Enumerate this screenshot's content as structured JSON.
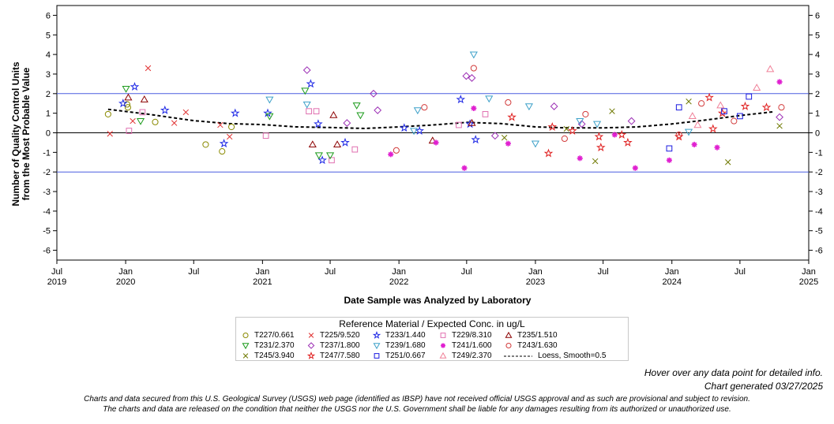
{
  "chart_data": {
    "type": "scatter",
    "ylabel_line1": "Number of Quality Control Units",
    "ylabel_line2": "from the Most Probable Value",
    "xlabel": "Date Sample was Analyzed by Laboratory",
    "ylim": [
      -6.5,
      6.5
    ],
    "y_ticks": [
      -6,
      -5,
      -4,
      -3,
      -2,
      -1,
      0,
      1,
      2,
      3,
      4,
      5,
      6
    ],
    "x_axis": {
      "start": "2019-07-01",
      "end": "2025-01-01",
      "ticks": [
        {
          "date": "2019-07-01",
          "label": "Jul",
          "year": "2019"
        },
        {
          "date": "2020-01-01",
          "label": "Jan",
          "year": "2020"
        },
        {
          "date": "2020-07-01",
          "label": "Jul",
          "year": ""
        },
        {
          "date": "2021-01-01",
          "label": "Jan",
          "year": "2021"
        },
        {
          "date": "2021-07-01",
          "label": "Jul",
          "year": ""
        },
        {
          "date": "2022-01-01",
          "label": "Jan",
          "year": "2022"
        },
        {
          "date": "2022-07-01",
          "label": "Jul",
          "year": ""
        },
        {
          "date": "2023-01-01",
          "label": "Jan",
          "year": "2023"
        },
        {
          "date": "2023-07-01",
          "label": "Jul",
          "year": ""
        },
        {
          "date": "2024-01-01",
          "label": "Jan",
          "year": "2024"
        },
        {
          "date": "2024-07-01",
          "label": "Jul",
          "year": ""
        },
        {
          "date": "2025-01-01",
          "label": "Jan",
          "year": "2025"
        }
      ]
    },
    "reference_lines": [
      {
        "y": 2,
        "color": "#4a5ee0"
      },
      {
        "y": -2,
        "color": "#4a5ee0"
      },
      {
        "y": 0,
        "color": "#000000"
      }
    ],
    "legend_title": "Reference Material / Expected Conc. in ug/L",
    "series": [
      {
        "name": "T227/0.661",
        "marker": "circle",
        "color": "#8a8a00",
        "points": [
          [
            "2019-11-15",
            0.95
          ],
          [
            "2020-01-05",
            1.45
          ],
          [
            "2020-01-07",
            1.3
          ],
          [
            "2020-03-20",
            0.55
          ],
          [
            "2020-08-02",
            -0.6
          ],
          [
            "2020-09-15",
            -0.95
          ],
          [
            "2020-10-10",
            0.3
          ]
        ]
      },
      {
        "name": "T225/9.520",
        "marker": "x",
        "color": "#e03030",
        "points": [
          [
            "2019-11-20",
            -0.05
          ],
          [
            "2020-01-20",
            0.6
          ],
          [
            "2020-03-01",
            3.3
          ],
          [
            "2020-05-10",
            0.5
          ],
          [
            "2020-06-10",
            1.05
          ],
          [
            "2020-09-10",
            0.4
          ],
          [
            "2020-10-05",
            -0.2
          ]
        ]
      },
      {
        "name": "T233/1.440",
        "marker": "star",
        "color": "#1e28e6",
        "points": [
          [
            "2019-12-25",
            1.5
          ],
          [
            "2020-01-25",
            2.35
          ],
          [
            "2020-04-15",
            1.15
          ],
          [
            "2020-09-20",
            -0.55
          ],
          [
            "2020-10-20",
            1.0
          ],
          [
            "2021-01-15",
            1.0
          ],
          [
            "2021-05-10",
            2.5
          ],
          [
            "2021-05-30",
            0.45
          ],
          [
            "2021-06-10",
            -1.4
          ],
          [
            "2021-08-10",
            -0.5
          ],
          [
            "2022-01-15",
            0.25
          ],
          [
            "2022-02-25",
            0.1
          ],
          [
            "2022-06-15",
            1.7
          ],
          [
            "2022-07-10",
            0.45
          ],
          [
            "2022-07-25",
            -0.35
          ]
        ]
      },
      {
        "name": "T229/8.310",
        "marker": "square",
        "color": "#e070b0",
        "points": [
          [
            "2020-01-10",
            0.1
          ],
          [
            "2020-02-15",
            1.05
          ],
          [
            "2021-01-10",
            -0.15
          ],
          [
            "2021-05-05",
            1.1
          ],
          [
            "2021-05-25",
            1.1
          ],
          [
            "2021-07-05",
            -1.4
          ],
          [
            "2021-09-05",
            -0.85
          ],
          [
            "2022-06-10",
            0.4
          ],
          [
            "2022-08-20",
            0.95
          ]
        ]
      },
      {
        "name": "T235/1.510",
        "marker": "triangle",
        "color": "#8b0000",
        "points": [
          [
            "2020-01-08",
            1.8
          ],
          [
            "2020-02-20",
            1.7
          ],
          [
            "2021-05-15",
            -0.6
          ],
          [
            "2021-07-10",
            0.9
          ],
          [
            "2021-07-20",
            -0.6
          ],
          [
            "2022-04-01",
            -0.4
          ],
          [
            "2022-07-15",
            0.5
          ]
        ]
      },
      {
        "name": "T231/2.370",
        "marker": "triangle-down",
        "color": "#1a9a1a",
        "points": [
          [
            "2020-01-02",
            2.25
          ],
          [
            "2020-02-10",
            0.6
          ],
          [
            "2021-01-20",
            0.85
          ],
          [
            "2021-04-25",
            2.15
          ],
          [
            "2021-06-01",
            -1.15
          ],
          [
            "2021-07-01",
            -1.15
          ],
          [
            "2021-09-10",
            1.4
          ],
          [
            "2021-09-20",
            0.9
          ]
        ]
      },
      {
        "name": "T237/1.800",
        "marker": "diamond",
        "color": "#9b2db4",
        "points": [
          [
            "2021-04-30",
            3.2
          ],
          [
            "2021-08-15",
            0.5
          ],
          [
            "2021-10-25",
            2.0
          ],
          [
            "2021-11-05",
            1.15
          ],
          [
            "2022-06-30",
            2.9
          ],
          [
            "2022-07-15",
            2.8
          ],
          [
            "2022-09-15",
            -0.15
          ],
          [
            "2023-02-20",
            1.35
          ],
          [
            "2023-05-05",
            0.45
          ],
          [
            "2023-09-15",
            0.6
          ],
          [
            "2024-10-15",
            0.8
          ]
        ]
      },
      {
        "name": "T239/1.680",
        "marker": "triangle-down",
        "color": "#3ca0c8",
        "points": [
          [
            "2021-01-20",
            1.7
          ],
          [
            "2021-04-30",
            1.45
          ],
          [
            "2022-02-10",
            0.1
          ],
          [
            "2022-02-20",
            1.15
          ],
          [
            "2022-07-20",
            4.0
          ],
          [
            "2022-08-30",
            1.75
          ],
          [
            "2022-12-15",
            1.35
          ],
          [
            "2023-01-01",
            -0.55
          ],
          [
            "2023-04-30",
            0.6
          ],
          [
            "2023-06-15",
            0.45
          ],
          [
            "2024-02-15",
            0.05
          ]
        ]
      },
      {
        "name": "T241/1.600",
        "marker": "asterisk",
        "color": "#e020d0",
        "points": [
          [
            "2021-12-10",
            -1.1
          ],
          [
            "2022-04-10",
            -0.5
          ],
          [
            "2022-06-25",
            -1.8
          ],
          [
            "2022-07-20",
            1.25
          ],
          [
            "2022-10-20",
            -0.55
          ],
          [
            "2023-04-30",
            -1.3
          ],
          [
            "2023-08-01",
            -0.1
          ],
          [
            "2023-09-25",
            -1.8
          ],
          [
            "2023-12-25",
            -1.4
          ],
          [
            "2024-03-01",
            -0.6
          ],
          [
            "2024-05-01",
            -0.75
          ],
          [
            "2024-10-15",
            2.6
          ]
        ]
      },
      {
        "name": "T243/1.630",
        "marker": "circle",
        "color": "#d23c3c",
        "points": [
          [
            "2021-12-25",
            -0.9
          ],
          [
            "2022-03-10",
            1.3
          ],
          [
            "2022-07-20",
            3.3
          ],
          [
            "2022-10-20",
            1.55
          ],
          [
            "2023-03-20",
            -0.3
          ],
          [
            "2023-05-15",
            0.95
          ],
          [
            "2024-01-20",
            -0.1
          ],
          [
            "2024-03-20",
            1.5
          ],
          [
            "2024-06-15",
            0.6
          ],
          [
            "2024-10-20",
            1.3
          ]
        ]
      },
      {
        "name": "T245/3.940",
        "marker": "x",
        "color": "#6e7800",
        "points": [
          [
            "2022-10-10",
            -0.25
          ],
          [
            "2023-03-25",
            0.2
          ],
          [
            "2023-06-10",
            -1.45
          ],
          [
            "2023-07-25",
            1.1
          ],
          [
            "2024-02-15",
            1.6
          ],
          [
            "2024-05-30",
            -1.5
          ],
          [
            "2024-10-15",
            0.35
          ]
        ]
      },
      {
        "name": "T247/7.580",
        "marker": "star",
        "color": "#e02020",
        "points": [
          [
            "2022-10-30",
            0.8
          ],
          [
            "2023-02-05",
            -1.05
          ],
          [
            "2023-02-15",
            0.3
          ],
          [
            "2023-04-10",
            0.1
          ],
          [
            "2023-06-20",
            -0.2
          ],
          [
            "2023-06-25",
            -0.75
          ],
          [
            "2023-08-20",
            -0.1
          ],
          [
            "2023-09-05",
            -0.5
          ],
          [
            "2024-01-20",
            -0.2
          ],
          [
            "2024-04-10",
            1.8
          ],
          [
            "2024-04-20",
            0.2
          ],
          [
            "2024-05-15",
            1.0
          ],
          [
            "2024-07-15",
            1.35
          ],
          [
            "2024-09-10",
            1.3
          ]
        ]
      },
      {
        "name": "T251/0.667",
        "marker": "square",
        "color": "#1a1ae0",
        "points": [
          [
            "2023-12-25",
            -0.8
          ],
          [
            "2024-01-20",
            1.3
          ],
          [
            "2024-05-20",
            1.1
          ],
          [
            "2024-07-01",
            0.85
          ],
          [
            "2024-07-25",
            1.85
          ]
        ]
      },
      {
        "name": "T249/2.370",
        "marker": "triangle",
        "color": "#f08098",
        "points": [
          [
            "2024-02-25",
            0.85
          ],
          [
            "2024-03-10",
            0.4
          ],
          [
            "2024-05-10",
            1.4
          ],
          [
            "2024-08-15",
            2.3
          ],
          [
            "2024-09-20",
            3.25
          ]
        ]
      }
    ],
    "loess": {
      "name": "Loess, Smooth=0.5",
      "points": [
        [
          "2019-11-15",
          1.2
        ],
        [
          "2020-03-01",
          0.95
        ],
        [
          "2020-07-01",
          0.62
        ],
        [
          "2020-10-01",
          0.47
        ],
        [
          "2021-01-01",
          0.42
        ],
        [
          "2021-04-01",
          0.3
        ],
        [
          "2021-07-01",
          0.27
        ],
        [
          "2021-10-01",
          0.22
        ],
        [
          "2022-01-01",
          0.3
        ],
        [
          "2022-04-01",
          0.4
        ],
        [
          "2022-07-01",
          0.53
        ],
        [
          "2022-10-01",
          0.47
        ],
        [
          "2023-01-01",
          0.3
        ],
        [
          "2023-04-01",
          0.25
        ],
        [
          "2023-07-01",
          0.25
        ],
        [
          "2023-10-01",
          0.3
        ],
        [
          "2024-01-01",
          0.45
        ],
        [
          "2024-04-01",
          0.65
        ],
        [
          "2024-07-01",
          0.88
        ],
        [
          "2024-10-01",
          1.08
        ]
      ]
    }
  },
  "notes": {
    "hover": "Hover over any data point for detailed info.",
    "generated": "Chart generated 03/27/2025",
    "disclaimer_line1": "Charts and data secured from this U.S. Geological Survey (USGS) web page (identified as IBSP) have not received official USGS approval and as such are provisional and subject to revision.",
    "disclaimer_line2": "The charts and data are released on the condition that neither the USGS nor the U.S. Government shall be liable for any damages resulting from its authorized or unauthorized use."
  }
}
